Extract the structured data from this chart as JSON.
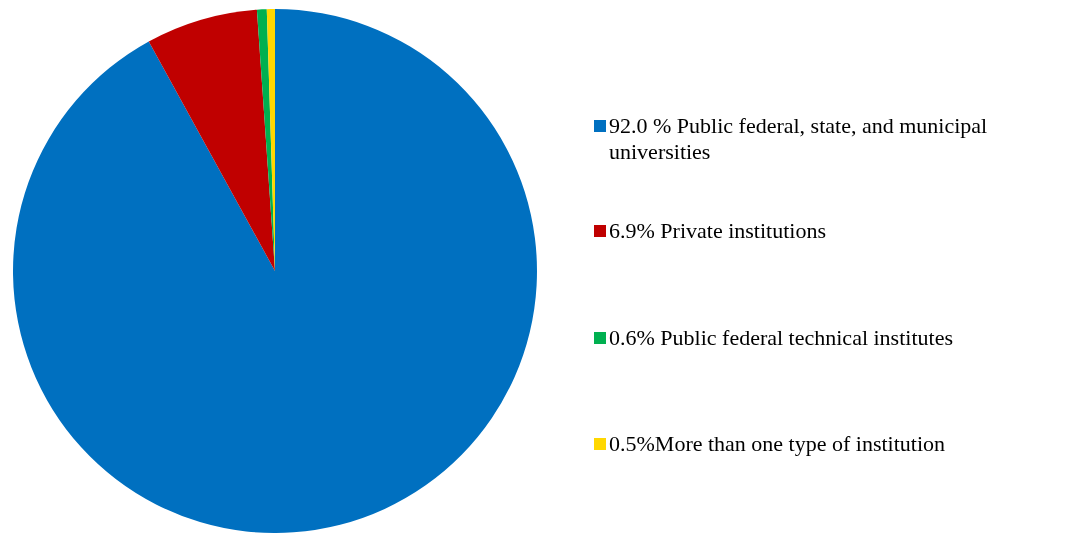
{
  "chart_data": {
    "type": "pie",
    "categories": [
      "92.0 % Public federal, state, and municipal universities",
      "6.9% Private institutions",
      "0.6% Public federal technical institutes",
      "0.5%More than one type of institution"
    ],
    "values": [
      92.0,
      6.9,
      0.6,
      0.5
    ],
    "colors": [
      "#0070c0",
      "#c00000",
      "#00b050",
      "#ffd700"
    ],
    "legend": "right"
  }
}
